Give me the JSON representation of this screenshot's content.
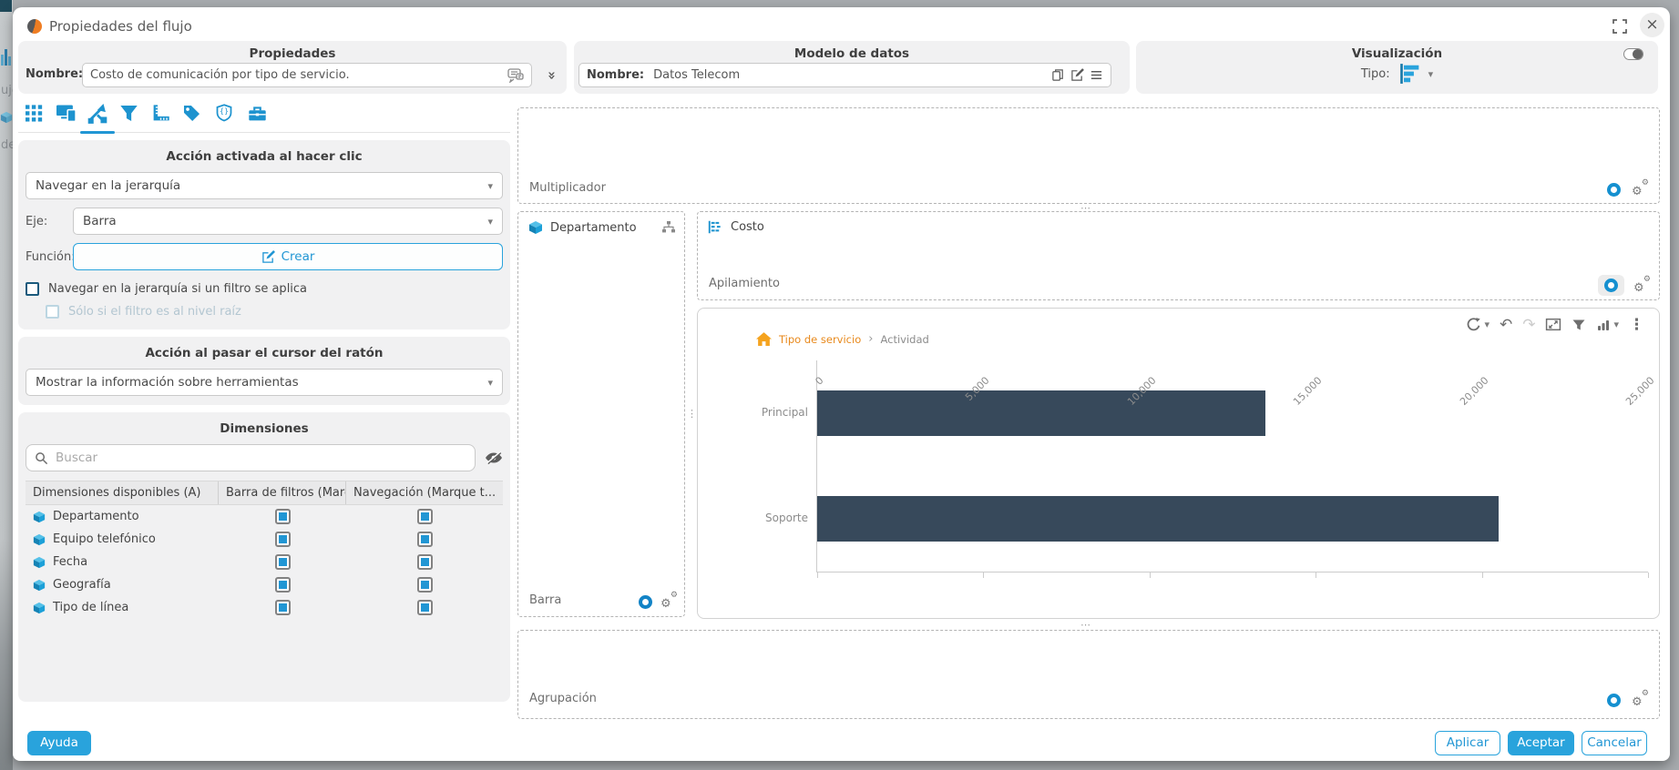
{
  "dialog": {
    "title": "Propiedades del flujo"
  },
  "properties_panel": {
    "title": "Propiedades",
    "name_label": "Nombre:",
    "name_value": "Costo de comunicación por tipo de servicio."
  },
  "data_model_panel": {
    "title": "Modelo de datos",
    "name_label": "Nombre:",
    "name_value": "Datos Telecom"
  },
  "visualization_panel": {
    "title": "Visualización",
    "type_label": "Tipo:",
    "toggle_state": "on"
  },
  "left": {
    "click_action": {
      "title": "Acción activada al hacer clic",
      "action_value": "Navegar en la jerarquía",
      "axis_label": "Eje:",
      "axis_value": "Barra",
      "function_label": "Función:",
      "create_label": "Crear",
      "checkbox_filter": {
        "label": "Navegar en la jerarquía si un filtro se aplica",
        "checked": false
      },
      "checkbox_root": {
        "label": "Sólo si el filtro es al nivel raíz",
        "checked": false,
        "enabled": false
      }
    },
    "hover_action": {
      "title": "Acción al pasar el cursor del ratón",
      "value": "Mostrar la información sobre herramientas"
    },
    "dimensions": {
      "title": "Dimensiones",
      "search_placeholder": "Buscar",
      "columns": [
        "Dimensiones disponibles (A)",
        "Barra de filtros (Marq...",
        "Navegación (Marque t..."
      ],
      "rows": [
        {
          "name": "Departamento",
          "filter_bar": true,
          "navigation": true
        },
        {
          "name": "Equipo telefónico",
          "filter_bar": true,
          "navigation": true
        },
        {
          "name": "Fecha",
          "filter_bar": true,
          "navigation": true
        },
        {
          "name": "Geografía",
          "filter_bar": true,
          "navigation": true
        },
        {
          "name": "Tipo de línea",
          "filter_bar": true,
          "navigation": true
        }
      ]
    }
  },
  "builder": {
    "multiplier_label": "Multiplicador",
    "bar_zone_label": "Barra",
    "bar_dimension": "Departamento",
    "measure_name": "Costo",
    "stacking_label": "Apilamiento",
    "grouping_label": "Agrupación"
  },
  "chart_data": {
    "type": "bar",
    "orientation": "horizontal",
    "breadcrumb": {
      "root": "Tipo de servicio",
      "current": "Actividad"
    },
    "categories": [
      "Principal",
      "Soporte"
    ],
    "values": [
      13500,
      20500
    ],
    "xlim": [
      0,
      25000
    ],
    "xticks": [
      "0",
      "5,000",
      "10,000",
      "15,000",
      "20,000",
      "25,000"
    ],
    "grid": false,
    "bar_color": "#37495b"
  },
  "footer": {
    "help": "Ayuda",
    "apply": "Aplicar",
    "accept": "Aceptar",
    "cancel": "Cancelar"
  },
  "background_fragments": {
    "frag1": "ujo",
    "frag2": "de"
  },
  "icons": {
    "close": "×",
    "double_chevron": "»",
    "caret_down": "▾",
    "undo": "↶",
    "redo": "↷",
    "kebab": "⋮",
    "gear": "⚙",
    "breadcrumb_separator": "›",
    "drag_dots": "⋯",
    "drag_dots_v": "⋮"
  },
  "colors": {
    "accent": "#29a3dc",
    "icon_blue": "#1d93cf",
    "bar": "#37495b",
    "orange": "#ef8d1e"
  }
}
